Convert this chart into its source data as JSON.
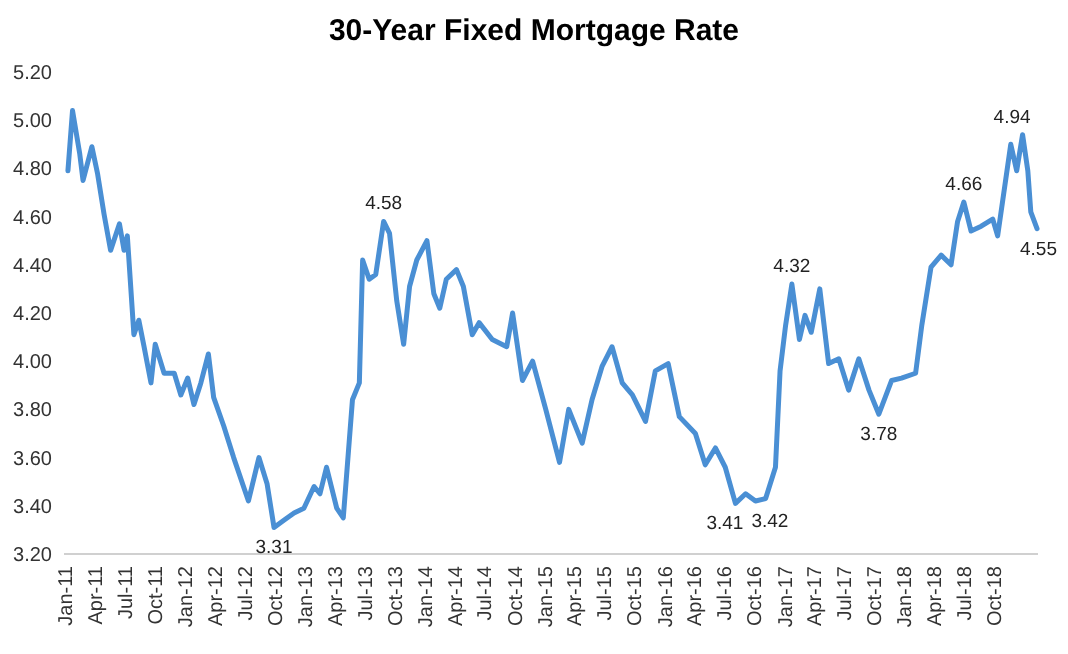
{
  "chart_data": {
    "type": "line",
    "title": "30-Year Fixed Mortgage Rate",
    "x": [
      "2011-01-09",
      "2011-01-23",
      "2011-02-14",
      "2011-02-24",
      "2011-03-23",
      "2011-04-09",
      "2011-04-29",
      "2011-05-19",
      "2011-06-15",
      "2011-06-29",
      "2011-07-09",
      "2011-07-29",
      "2011-08-13",
      "2011-08-29",
      "2011-09-19",
      "2011-10-02",
      "2011-10-29",
      "2011-11-29",
      "2011-12-19",
      "2012-01-09",
      "2012-01-28",
      "2012-02-18",
      "2012-03-12",
      "2012-03-28",
      "2012-04-28",
      "2012-05-28",
      "2012-07-12",
      "2012-08-13",
      "2012-09-07",
      "2012-09-28",
      "2012-10-28",
      "2012-11-28",
      "2012-12-28",
      "2013-01-28",
      "2013-02-15",
      "2013-03-07",
      "2013-04-07",
      "2013-04-27",
      "2013-05-25",
      "2013-06-15",
      "2013-06-25",
      "2013-07-15",
      "2013-08-04",
      "2013-08-28",
      "2013-09-15",
      "2013-10-07",
      "2013-10-28",
      "2013-11-15",
      "2013-12-07",
      "2014-01-07",
      "2014-01-28",
      "2014-02-15",
      "2014-03-07",
      "2014-04-07",
      "2014-04-28",
      "2014-05-25",
      "2014-06-15",
      "2014-07-25",
      "2014-09-07",
      "2014-09-25",
      "2014-10-25",
      "2014-11-25",
      "2015-01-04",
      "2015-02-15",
      "2015-03-15",
      "2015-04-25",
      "2015-05-25",
      "2015-06-25",
      "2015-07-25",
      "2015-08-25",
      "2015-09-25",
      "2015-11-04",
      "2015-12-04",
      "2016-01-12",
      "2016-02-15",
      "2016-04-04",
      "2016-05-04",
      "2016-06-04",
      "2016-07-04",
      "2016-08-04",
      "2016-09-04",
      "2016-10-04",
      "2016-11-04",
      "2016-12-04",
      "2016-12-18",
      "2017-01-04",
      "2017-01-23",
      "2017-02-15",
      "2017-03-04",
      "2017-03-23",
      "2017-04-18",
      "2017-05-15",
      "2017-06-15",
      "2017-07-15",
      "2017-08-15",
      "2017-09-15",
      "2017-10-15",
      "2017-11-23",
      "2017-12-23",
      "2018-02-04",
      "2018-02-23",
      "2018-03-23",
      "2018-04-23",
      "2018-05-23",
      "2018-06-12",
      "2018-07-01",
      "2018-07-23",
      "2018-08-23",
      "2018-09-27",
      "2018-10-12",
      "2018-11-21",
      "2018-12-09",
      "2018-12-27",
      "2019-01-12",
      "2019-01-21",
      "2019-02-09"
    ],
    "series": [
      {
        "color": "#4a8fd4",
        "values": [
          4.79,
          5.04,
          4.86,
          4.75,
          4.89,
          4.78,
          4.61,
          4.46,
          4.57,
          4.46,
          4.52,
          4.11,
          4.17,
          4.06,
          3.91,
          4.07,
          3.95,
          3.95,
          3.86,
          3.93,
          3.82,
          3.91,
          4.03,
          3.85,
          3.73,
          3.6,
          3.42,
          3.6,
          3.49,
          3.31,
          3.34,
          3.37,
          3.39,
          3.48,
          3.45,
          3.56,
          3.39,
          3.35,
          3.84,
          3.91,
          4.42,
          4.34,
          4.36,
          4.58,
          4.53,
          4.25,
          4.07,
          4.31,
          4.42,
          4.5,
          4.28,
          4.22,
          4.34,
          4.38,
          4.31,
          4.11,
          4.16,
          4.09,
          4.06,
          4.2,
          3.92,
          4.0,
          3.8,
          3.58,
          3.8,
          3.66,
          3.84,
          3.98,
          4.06,
          3.91,
          3.86,
          3.75,
          3.96,
          3.99,
          3.77,
          3.7,
          3.57,
          3.64,
          3.56,
          3.41,
          3.45,
          3.42,
          3.43,
          3.56,
          3.96,
          4.15,
          4.32,
          4.09,
          4.19,
          4.12,
          4.3,
          3.99,
          4.01,
          3.88,
          4.01,
          3.88,
          3.78,
          3.92,
          3.93,
          3.95,
          4.15,
          4.39,
          4.44,
          4.4,
          4.58,
          4.66,
          4.54,
          4.56,
          4.59,
          4.52,
          4.9,
          4.79,
          4.94,
          4.79,
          4.62,
          4.55
        ]
      }
    ],
    "xlim": [
      "2010-12-28",
      "2019-02-12"
    ],
    "xticks": [
      {
        "value": "2011-01-01",
        "label": "Jan-11"
      },
      {
        "value": "2011-04-01",
        "label": "Apr-11"
      },
      {
        "value": "2011-07-01",
        "label": "Jul-11"
      },
      {
        "value": "2011-10-01",
        "label": "Oct-11"
      },
      {
        "value": "2012-01-01",
        "label": "Jan-12"
      },
      {
        "value": "2012-04-01",
        "label": "Apr-12"
      },
      {
        "value": "2012-07-01",
        "label": "Jul-12"
      },
      {
        "value": "2012-10-01",
        "label": "Oct-12"
      },
      {
        "value": "2013-01-01",
        "label": "Jan-13"
      },
      {
        "value": "2013-04-01",
        "label": "Apr-13"
      },
      {
        "value": "2013-07-01",
        "label": "Jul-13"
      },
      {
        "value": "2013-10-01",
        "label": "Oct-13"
      },
      {
        "value": "2014-01-01",
        "label": "Jan-14"
      },
      {
        "value": "2014-04-01",
        "label": "Apr-14"
      },
      {
        "value": "2014-07-01",
        "label": "Jul-14"
      },
      {
        "value": "2014-10-01",
        "label": "Oct-14"
      },
      {
        "value": "2015-01-01",
        "label": "Jan-15"
      },
      {
        "value": "2015-04-01",
        "label": "Apr-15"
      },
      {
        "value": "2015-07-01",
        "label": "Jul-15"
      },
      {
        "value": "2015-10-01",
        "label": "Oct-15"
      },
      {
        "value": "2016-01-01",
        "label": "Jan-16"
      },
      {
        "value": "2016-04-01",
        "label": "Apr-16"
      },
      {
        "value": "2016-07-01",
        "label": "Jul-16"
      },
      {
        "value": "2016-10-01",
        "label": "Oct-16"
      },
      {
        "value": "2017-01-01",
        "label": "Jan-17"
      },
      {
        "value": "2017-04-01",
        "label": "Apr-17"
      },
      {
        "value": "2017-07-01",
        "label": "Jul-17"
      },
      {
        "value": "2017-10-01",
        "label": "Oct-17"
      },
      {
        "value": "2018-01-01",
        "label": "Jan-18"
      },
      {
        "value": "2018-04-01",
        "label": "Apr-18"
      },
      {
        "value": "2018-07-01",
        "label": "Jul-18"
      },
      {
        "value": "2018-10-01",
        "label": "Oct-18"
      }
    ],
    "ylim": [
      3.2,
      5.2
    ],
    "yticks": [
      {
        "value": 3.2,
        "label": "3.20"
      },
      {
        "value": 3.4,
        "label": "3.40"
      },
      {
        "value": 3.6,
        "label": "3.60"
      },
      {
        "value": 3.8,
        "label": "3.80"
      },
      {
        "value": 4.0,
        "label": "4.00"
      },
      {
        "value": 4.2,
        "label": "4.20"
      },
      {
        "value": 4.4,
        "label": "4.40"
      },
      {
        "value": 4.6,
        "label": "4.60"
      },
      {
        "value": 4.8,
        "label": "4.80"
      },
      {
        "value": 5.0,
        "label": "5.00"
      },
      {
        "value": 5.2,
        "label": "5.20"
      }
    ],
    "annotations": [
      {
        "text": "3.31",
        "x": "2012-09-28",
        "y": 3.31
      },
      {
        "text": "4.58",
        "x": "2013-08-28",
        "y": 4.58
      },
      {
        "text": "3.41",
        "x": "2016-08-04",
        "y": 3.41
      },
      {
        "text": "3.42",
        "x": "2016-10-04",
        "y": 3.42
      },
      {
        "text": "4.32",
        "x": "2017-01-23",
        "y": 4.32
      },
      {
        "text": "3.78",
        "x": "2017-10-15",
        "y": 3.78
      },
      {
        "text": "4.66",
        "x": "2018-07-01",
        "y": 4.66
      },
      {
        "text": "4.94",
        "x": "2018-12-27",
        "y": 4.94
      },
      {
        "text": "4.55",
        "x": "2019-02-09",
        "y": 4.55
      }
    ],
    "grid": false,
    "marker": "none",
    "line_style": "solid"
  }
}
